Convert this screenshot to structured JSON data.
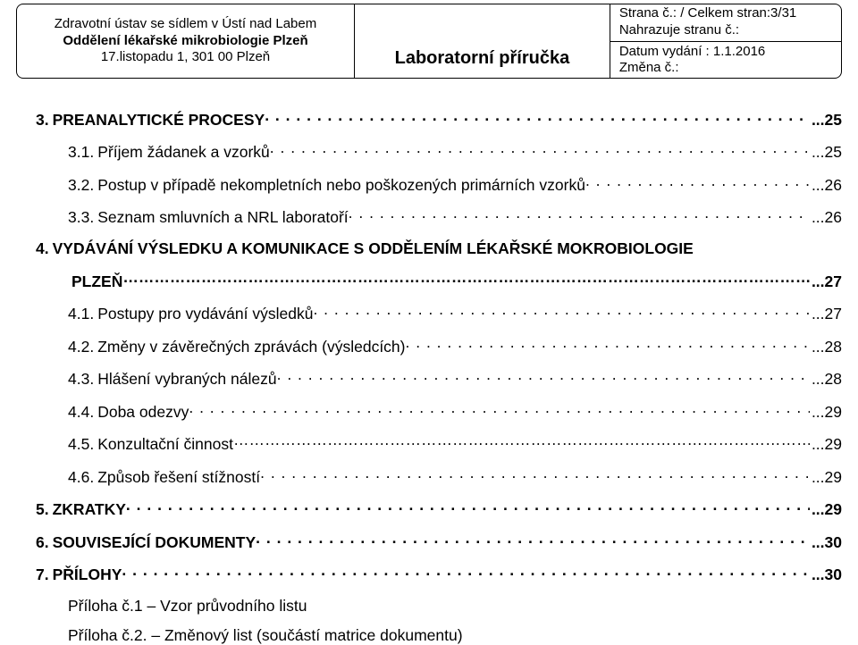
{
  "header": {
    "org1": "Zdravotní ústav se sídlem v Ústí nad Labem",
    "org2": "Oddělení lékařské mikrobiologie Plzeň",
    "addr": "17.listopadu 1, 301 00 Plzeň",
    "title": "Laboratorní příručka",
    "page_label": "Strana č.: / Celkem stran:3/31",
    "replaces": "Nahrazuje stranu č.:",
    "issued": "Datum vydání : 1.1.2016",
    "change": "Změna č.:"
  },
  "toc": [
    {
      "lvl": 0,
      "num": "3.",
      "label": "PREANALYTICKÉ PROCESY",
      "page": "25",
      "style": "dots"
    },
    {
      "lvl": 1,
      "num": "3.1.",
      "label": "Příjem žádanek a vzorků",
      "page": "25",
      "style": "dots"
    },
    {
      "lvl": 1,
      "num": "3.2.",
      "label": "Postup v případě nekompletních nebo poškozených primárních vzorků",
      "page": "26",
      "style": "dots"
    },
    {
      "lvl": 1,
      "num": "3.3.",
      "label": "Seznam smluvních a NRL laboratoří",
      "page": "26",
      "style": "dots"
    },
    {
      "lvl": 0,
      "num": "4.",
      "label": "VYDÁVÁNÍ VÝSLEDKU A KOMUNIKACE S ODDĚLENÍM LÉKAŘSKÉ MOKROBIOLOGIE",
      "page": "",
      "style": "none"
    },
    {
      "lvl": "cont",
      "num": "",
      "label": "PLZEŇ",
      "page": "27",
      "style": "dotted"
    },
    {
      "lvl": 1,
      "num": "4.1.",
      "label": "Postupy pro vydávání výsledků",
      "page": "27",
      "style": "dots"
    },
    {
      "lvl": 1,
      "num": "4.2.",
      "label": "Změny v závěrečných zprávách (výsledcích)",
      "page": "28",
      "style": "dots"
    },
    {
      "lvl": 1,
      "num": "4.3.",
      "label": "Hlášení vybraných nálezů",
      "page": "28",
      "style": "dots"
    },
    {
      "lvl": 1,
      "num": "4.4.",
      "label": "Doba odezvy",
      "page": "29",
      "style": "dots"
    },
    {
      "lvl": 1,
      "num": "4.5.",
      "label": "Konzultační činnost",
      "page": "29",
      "style": "dotted"
    },
    {
      "lvl": 1,
      "num": "4.6.",
      "label": "Způsob řešení stížností",
      "page": "29",
      "style": "dots"
    },
    {
      "lvl": 0,
      "num": "5.",
      "label": "ZKRATKY",
      "page": "29",
      "style": "dots"
    },
    {
      "lvl": 0,
      "num": "6.",
      "label": "SOUVISEJÍCÍ DOKUMENTY",
      "page": "30",
      "style": "dots"
    },
    {
      "lvl": 0,
      "num": "7.",
      "label": "PŘÍLOHY",
      "page": "30",
      "style": "dots"
    }
  ],
  "appendices": [
    "Příloha č.1 – Vzor průvodního listu",
    "Příloha č.2. – Změnový list (součástí matrice dokumentu)"
  ]
}
